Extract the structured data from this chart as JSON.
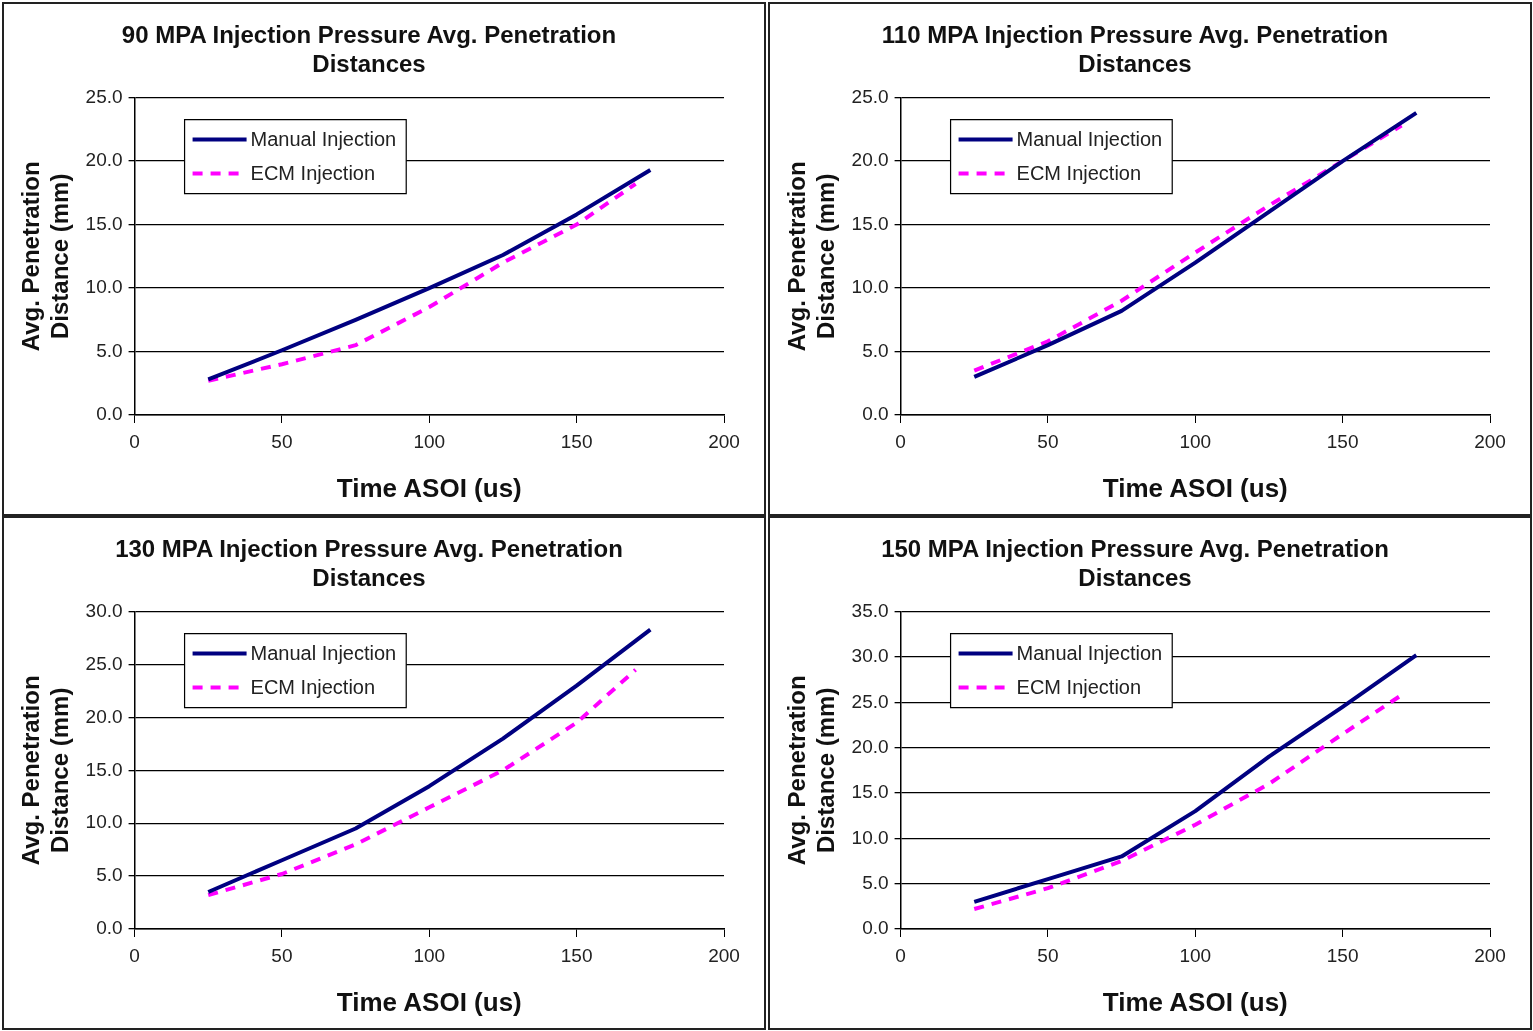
{
  "chart_data": [
    {
      "type": "line",
      "title": "90 MPA Injection Pressure Avg. Penetration Distances",
      "xlabel": "Time ASOI (us)",
      "ylabel": "Avg. Penetration Distance (mm)",
      "xlim": [
        0,
        200
      ],
      "xticks": [
        0,
        50,
        100,
        150,
        200
      ],
      "ylim": [
        0,
        25
      ],
      "yticks": [
        {
          "value": 0,
          "label": "0.0"
        },
        {
          "value": 5,
          "label": "5.0"
        },
        {
          "value": 10,
          "label": "10.0"
        },
        {
          "value": 15,
          "label": "15.0"
        },
        {
          "value": 20,
          "label": "20.0"
        },
        {
          "value": 25,
          "label": "25.0"
        }
      ],
      "grid": "y",
      "legend": "top left",
      "marker": "none",
      "series": [
        {
          "name": "Manual Injection",
          "color": "#000080",
          "line_style": "solid",
          "x": [
            25,
            50,
            75,
            100,
            125,
            150,
            175
          ],
          "values": [
            2.8,
            5.1,
            7.5,
            10.0,
            12.6,
            15.8,
            19.3
          ]
        },
        {
          "name": "ECM Injection",
          "color": "#ff00ff",
          "line_style": "dashed",
          "x": [
            25,
            50,
            75,
            100,
            125,
            150,
            170
          ],
          "values": [
            2.7,
            4.0,
            5.5,
            8.5,
            12.0,
            15.0,
            18.2
          ]
        }
      ]
    },
    {
      "type": "line",
      "title": "110 MPA Injection Pressure Avg. Penetration Distances",
      "xlabel": "Time ASOI (us)",
      "ylabel": "Avg. Penetration Distance (mm)",
      "xlim": [
        0,
        200
      ],
      "xticks": [
        0,
        50,
        100,
        150,
        200
      ],
      "ylim": [
        0,
        25
      ],
      "yticks": [
        {
          "value": 0,
          "label": "0.0"
        },
        {
          "value": 5,
          "label": "5.0"
        },
        {
          "value": 10,
          "label": "10.0"
        },
        {
          "value": 15,
          "label": "15.0"
        },
        {
          "value": 20,
          "label": "20.0"
        },
        {
          "value": 25,
          "label": "25.0"
        }
      ],
      "grid": "y",
      "legend": "top left",
      "marker": "none",
      "series": [
        {
          "name": "Manual Injection",
          "color": "#000080",
          "line_style": "solid",
          "x": [
            25,
            50,
            75,
            100,
            125,
            150,
            175
          ],
          "values": [
            3.0,
            5.5,
            8.2,
            12.0,
            16.0,
            20.0,
            23.8
          ]
        },
        {
          "name": "ECM Injection",
          "color": "#ff00ff",
          "line_style": "dashed",
          "x": [
            25,
            50,
            75,
            100,
            125,
            150,
            170
          ],
          "values": [
            3.5,
            5.8,
            9.0,
            12.8,
            16.5,
            20.0,
            22.8
          ]
        }
      ]
    },
    {
      "type": "line",
      "title": "130 MPA Injection Pressure Avg. Penetration Distances",
      "xlabel": "Time ASOI (us)",
      "ylabel": "Avg. Penetration Distance (mm)",
      "xlim": [
        0,
        200
      ],
      "xticks": [
        0,
        50,
        100,
        150,
        200
      ],
      "ylim": [
        0,
        30
      ],
      "yticks": [
        {
          "value": 0,
          "label": "0.0"
        },
        {
          "value": 5,
          "label": "5.0"
        },
        {
          "value": 10,
          "label": "10.0"
        },
        {
          "value": 15,
          "label": "15.0"
        },
        {
          "value": 20,
          "label": "20.0"
        },
        {
          "value": 25,
          "label": "25.0"
        },
        {
          "value": 30,
          "label": "30.0"
        }
      ],
      "grid": "y",
      "legend": "top left",
      "marker": "none",
      "series": [
        {
          "name": "Manual Injection",
          "color": "#000080",
          "line_style": "solid",
          "x": [
            25,
            50,
            75,
            100,
            125,
            150,
            175
          ],
          "values": [
            3.5,
            6.5,
            9.5,
            13.5,
            18.0,
            23.0,
            28.3
          ]
        },
        {
          "name": "ECM Injection",
          "color": "#ff00ff",
          "line_style": "dashed",
          "x": [
            25,
            50,
            75,
            100,
            125,
            150,
            170
          ],
          "values": [
            3.2,
            5.2,
            8.0,
            11.5,
            15.0,
            19.5,
            24.5
          ]
        }
      ]
    },
    {
      "type": "line",
      "title": "150 MPA Injection Pressure Avg. Penetration Distances",
      "xlabel": "Time ASOI (us)",
      "ylabel": "Avg. Penetration Distance (mm)",
      "xlim": [
        0,
        200
      ],
      "xticks": [
        0,
        50,
        100,
        150,
        200
      ],
      "ylim": [
        0,
        35
      ],
      "yticks": [
        {
          "value": 0,
          "label": "0.0"
        },
        {
          "value": 5,
          "label": "5.0"
        },
        {
          "value": 10,
          "label": "10.0"
        },
        {
          "value": 15,
          "label": "15.0"
        },
        {
          "value": 20,
          "label": "20.0"
        },
        {
          "value": 25,
          "label": "25.0"
        },
        {
          "value": 30,
          "label": "30.0"
        },
        {
          "value": 35,
          "label": "35.0"
        }
      ],
      "grid": "y",
      "legend": "top left",
      "marker": "none",
      "series": [
        {
          "name": "Manual Injection",
          "color": "#000080",
          "line_style": "solid",
          "x": [
            25,
            50,
            75,
            100,
            125,
            150,
            175
          ],
          "values": [
            3.0,
            5.5,
            8.0,
            13.0,
            19.0,
            24.5,
            30.2
          ]
        },
        {
          "name": "ECM Injection",
          "color": "#ff00ff",
          "line_style": "dashed",
          "x": [
            25,
            50,
            75,
            100,
            125,
            150,
            170
          ],
          "values": [
            2.2,
            4.5,
            7.5,
            11.5,
            16.0,
            21.5,
            25.8
          ]
        }
      ]
    }
  ]
}
